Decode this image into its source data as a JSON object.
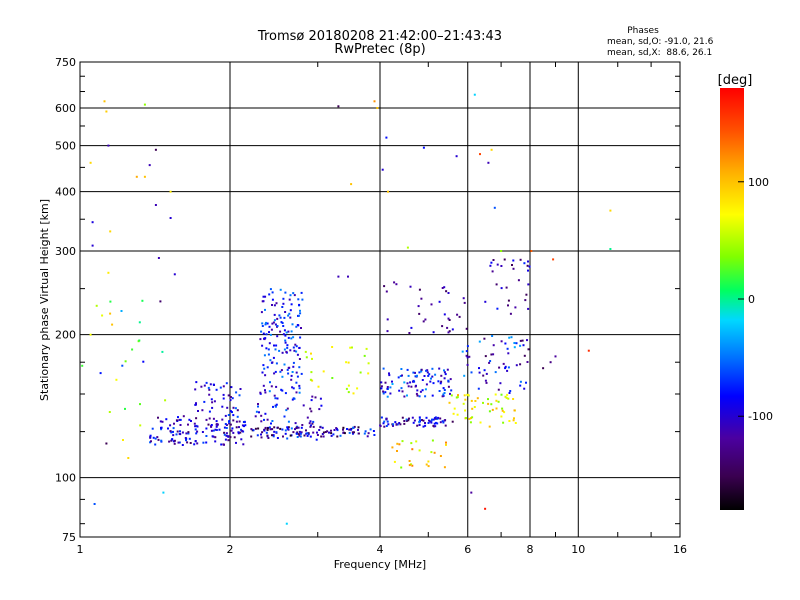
{
  "chart_data": {
    "type": "scatter",
    "title": "Tromsø 20180208 21:42:00–21:43:43",
    "subtitle": "RwPretec (8p)",
    "xlabel": "Frequency [MHz]",
    "ylabel": "Stationary phase Virtual Height [km]",
    "x_scale": "log",
    "y_scale": "log",
    "xlim": [
      1,
      16
    ],
    "ylim": [
      75,
      750
    ],
    "x_ticks": [
      1,
      2,
      4,
      6,
      8,
      10,
      16
    ],
    "y_ticks": [
      75,
      100,
      200,
      300,
      400,
      500,
      600,
      750
    ],
    "grid": true,
    "stats": {
      "heading": "Phases",
      "line_o": "mean, sd,O: -91.0, 21.6",
      "line_x": "mean, sd,X:  88.6, 26.1"
    },
    "colorbar": {
      "label": "[deg]",
      "ticks": [
        -100,
        0,
        100
      ],
      "range": [
        -180,
        180
      ]
    },
    "points": [
      {
        "x": 1.01,
        "y": 172,
        "phase": 20
      },
      {
        "x": 1.05,
        "y": 460,
        "phase": 90
      },
      {
        "x": 1.05,
        "y": 200,
        "phase": 70
      },
      {
        "x": 1.06,
        "y": 345,
        "phase": -95
      },
      {
        "x": 1.06,
        "y": 308,
        "phase": -100
      },
      {
        "x": 1.07,
        "y": 88,
        "phase": -60
      },
      {
        "x": 1.08,
        "y": 230,
        "phase": 50
      },
      {
        "x": 1.12,
        "y": 620,
        "phase": 100
      },
      {
        "x": 1.13,
        "y": 590,
        "phase": 95
      },
      {
        "x": 1.14,
        "y": 500,
        "phase": -110
      },
      {
        "x": 1.15,
        "y": 330,
        "phase": 90
      },
      {
        "x": 1.14,
        "y": 270,
        "phase": 80
      },
      {
        "x": 1.16,
        "y": 210,
        "phase": 100
      },
      {
        "x": 1.13,
        "y": 118,
        "phase": -150
      },
      {
        "x": 1.22,
        "y": 120,
        "phase": 80
      },
      {
        "x": 1.25,
        "y": 110,
        "phase": 90
      },
      {
        "x": 1.3,
        "y": 430,
        "phase": 110
      },
      {
        "x": 1.35,
        "y": 610,
        "phase": 40
      },
      {
        "x": 1.35,
        "y": 430,
        "phase": 100
      },
      {
        "x": 1.38,
        "y": 455,
        "phase": -110
      },
      {
        "x": 1.42,
        "y": 490,
        "phase": -150
      },
      {
        "x": 1.42,
        "y": 375,
        "phase": -110
      },
      {
        "x": 1.44,
        "y": 290,
        "phase": -110
      },
      {
        "x": 1.45,
        "y": 235,
        "phase": -140
      },
      {
        "x": 1.47,
        "y": 93,
        "phase": -20
      },
      {
        "x": 1.52,
        "y": 352,
        "phase": -100
      },
      {
        "x": 1.52,
        "y": 400,
        "phase": 80
      },
      {
        "x": 1.55,
        "y": 268,
        "phase": -100
      },
      {
        "x": 3.3,
        "y": 605,
        "phase": -150
      },
      {
        "x": 3.9,
        "y": 620,
        "phase": 120
      },
      {
        "x": 3.95,
        "y": 600,
        "phase": 100
      },
      {
        "x": 4.05,
        "y": 445,
        "phase": -100
      },
      {
        "x": 4.12,
        "y": 520,
        "phase": -80
      },
      {
        "x": 4.15,
        "y": 400,
        "phase": 100
      },
      {
        "x": 4.55,
        "y": 305,
        "phase": 50
      },
      {
        "x": 4.9,
        "y": 495,
        "phase": -80
      },
      {
        "x": 5.7,
        "y": 475,
        "phase": -100
      },
      {
        "x": 6.2,
        "y": 640,
        "phase": -20
      },
      {
        "x": 6.35,
        "y": 480,
        "phase": 150
      },
      {
        "x": 6.6,
        "y": 460,
        "phase": -110
      },
      {
        "x": 6.7,
        "y": 490,
        "phase": 90
      },
      {
        "x": 6.8,
        "y": 370,
        "phase": -60
      },
      {
        "x": 7.0,
        "y": 300,
        "phase": 40
      },
      {
        "x": 8.05,
        "y": 300,
        "phase": 140
      },
      {
        "x": 8.9,
        "y": 288,
        "phase": 150
      },
      {
        "x": 10.5,
        "y": 185,
        "phase": 160
      },
      {
        "x": 11.6,
        "y": 365,
        "phase": 90
      },
      {
        "x": 11.6,
        "y": 303,
        "phase": 0
      },
      {
        "x": 6.5,
        "y": 86,
        "phase": 170
      },
      {
        "x": 6.1,
        "y": 93,
        "phase": -120
      },
      {
        "x": 2.6,
        "y": 80,
        "phase": -20
      },
      {
        "x": 3.3,
        "y": 265,
        "phase": -110
      },
      {
        "x": 3.45,
        "y": 265,
        "phase": -110
      },
      {
        "x": 3.5,
        "y": 415,
        "phase": 100
      },
      {
        "x": 8.8,
        "y": 175,
        "phase": -130
      },
      {
        "x": 9.0,
        "y": 180,
        "phase": -120
      },
      {
        "x": 8.5,
        "y": 170,
        "phase": -150
      }
    ],
    "clusters": [
      {
        "x": [
          1.38,
          2.15
        ],
        "y": [
          117,
          135
        ],
        "phase": -100,
        "spread": 45,
        "count": 150
      },
      {
        "x": [
          1.7,
          2.1
        ],
        "y": [
          135,
          160
        ],
        "phase": -90,
        "spread": 40,
        "count": 45
      },
      {
        "x": [
          2.3,
          2.8
        ],
        "y": [
          150,
          250
        ],
        "phase": -80,
        "spread": 40,
        "count": 160
      },
      {
        "x": [
          2.25,
          3.1
        ],
        "y": [
          120,
          150
        ],
        "phase": -90,
        "spread": 45,
        "count": 60
      },
      {
        "x": [
          2.2,
          3.9
        ],
        "y": [
          122,
          128
        ],
        "phase": -110,
        "spread": 60,
        "count": 110
      },
      {
        "x": [
          2.8,
          3.8
        ],
        "y": [
          150,
          190
        ],
        "phase": 60,
        "spread": 30,
        "count": 25
      },
      {
        "x": [
          4.0,
          5.6
        ],
        "y": [
          148,
          170
        ],
        "phase": -80,
        "spread": 50,
        "count": 95
      },
      {
        "x": [
          4.0,
          5.6
        ],
        "y": [
          128,
          134
        ],
        "phase": -100,
        "spread": 50,
        "count": 70
      },
      {
        "x": [
          4.2,
          5.5
        ],
        "y": [
          105,
          120
        ],
        "phase": 80,
        "spread": 50,
        "count": 25
      },
      {
        "x": [
          4.0,
          6.0
        ],
        "y": [
          200,
          260
        ],
        "phase": -120,
        "spread": 30,
        "count": 35
      },
      {
        "x": [
          5.5,
          7.5
        ],
        "y": [
          128,
          150
        ],
        "phase": 70,
        "spread": 40,
        "count": 55
      },
      {
        "x": [
          5.8,
          8.0
        ],
        "y": [
          150,
          200
        ],
        "phase": -90,
        "spread": 60,
        "count": 60
      },
      {
        "x": [
          6.5,
          8.0
        ],
        "y": [
          220,
          290
        ],
        "phase": -110,
        "spread": 40,
        "count": 30
      },
      {
        "x": [
          1.05,
          1.5
        ],
        "y": [
          125,
          240
        ],
        "phase": 0,
        "spread": 100,
        "count": 20
      }
    ]
  }
}
